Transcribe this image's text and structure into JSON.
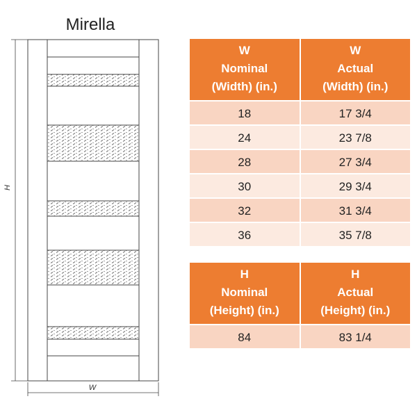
{
  "title": "Mirella",
  "drawing": {
    "height_label": "H",
    "width_label": "W"
  },
  "width_table": {
    "headers": [
      [
        "W",
        "Nominal",
        "(Width) (in.)"
      ],
      [
        "W",
        "Actual",
        "(Width) (in.)"
      ]
    ],
    "rows": [
      [
        "18",
        "17 3/4"
      ],
      [
        "24",
        "23 7/8"
      ],
      [
        "28",
        "27 3/4"
      ],
      [
        "30",
        "29 3/4"
      ],
      [
        "32",
        "31 3/4"
      ],
      [
        "36",
        "35 7/8"
      ]
    ]
  },
  "height_table": {
    "headers": [
      [
        "H",
        "Nominal",
        "(Height) (in.)"
      ],
      [
        "H",
        "Actual",
        "(Height) (in.)"
      ]
    ],
    "rows": [
      [
        "84",
        "83 1/4"
      ]
    ]
  }
}
